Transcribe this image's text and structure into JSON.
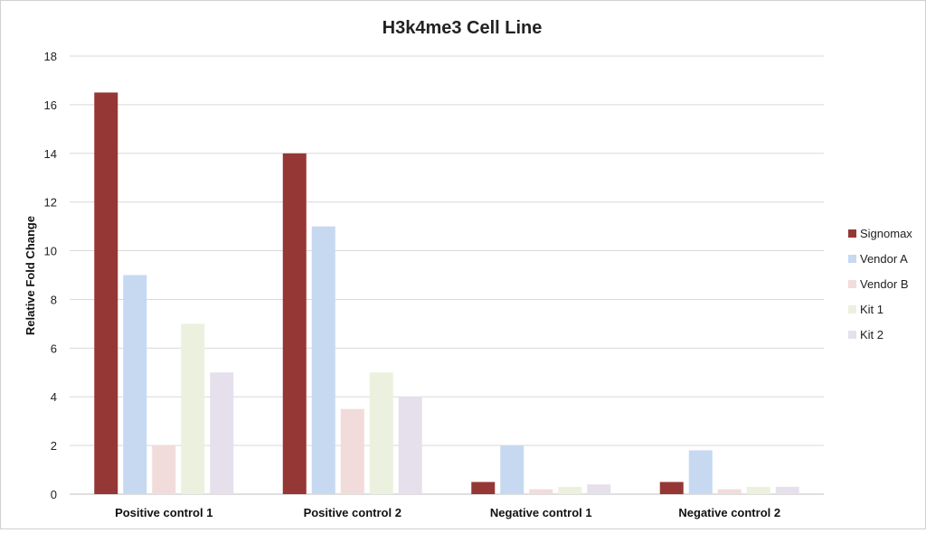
{
  "chart_data": {
    "type": "bar",
    "title": "H3k4me3 Cell Line",
    "xlabel": "",
    "ylabel": "Relative Fold Change",
    "ylim": [
      0,
      18
    ],
    "yticks": [
      0,
      2,
      4,
      6,
      8,
      10,
      12,
      14,
      16,
      18
    ],
    "grid": true,
    "legend_position": "right",
    "categories": [
      "Positive control 1",
      "Positive control 2",
      "Negative control 1",
      "Negative control 2"
    ],
    "series": [
      {
        "name": "Signomax",
        "color": "#953735",
        "values": [
          16.5,
          14,
          0.5,
          0.5
        ]
      },
      {
        "name": "Vendor A",
        "color": "#c6d9f1",
        "values": [
          9,
          11,
          2,
          1.8
        ]
      },
      {
        "name": "Vendor B",
        "color": "#f2dcdb",
        "values": [
          2,
          3.5,
          0.2,
          0.2
        ]
      },
      {
        "name": "Kit 1",
        "color": "#ebf1de",
        "values": [
          7,
          5,
          0.3,
          0.3
        ]
      },
      {
        "name": "Kit 2",
        "color": "#e6e0ec",
        "values": [
          5,
          4,
          0.4,
          0.3
        ]
      }
    ]
  }
}
